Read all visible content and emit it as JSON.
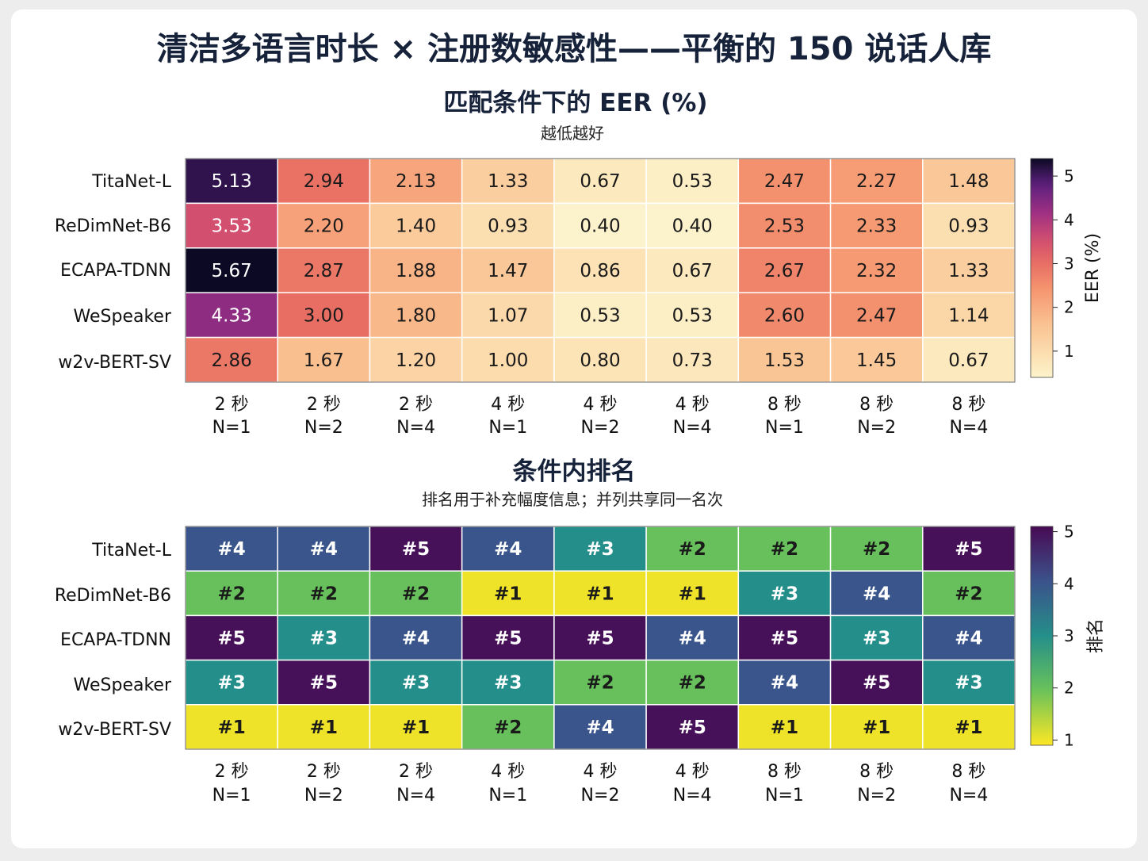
{
  "figure": {
    "title": "清洁多语言时长 × 注册数敏感性——平衡的 150 说话人库"
  },
  "chart_data": [
    {
      "type": "heatmap",
      "title": "匹配条件下的 EER (%)",
      "subtitle": "越低越好",
      "rows": [
        "TitaNet-L",
        "ReDimNet-B6",
        "ECAPA-TDNN",
        "WeSpeaker",
        "w2v-BERT-SV"
      ],
      "columns": [
        {
          "duration": "2 秒",
          "n": "N=1"
        },
        {
          "duration": "2 秒",
          "n": "N=2"
        },
        {
          "duration": "2 秒",
          "n": "N=4"
        },
        {
          "duration": "4 秒",
          "n": "N=1"
        },
        {
          "duration": "4 秒",
          "n": "N=2"
        },
        {
          "duration": "4 秒",
          "n": "N=4"
        },
        {
          "duration": "8 秒",
          "n": "N=1"
        },
        {
          "duration": "8 秒",
          "n": "N=2"
        },
        {
          "duration": "8 秒",
          "n": "N=4"
        }
      ],
      "values": [
        [
          5.13,
          2.94,
          2.13,
          1.33,
          0.67,
          0.53,
          2.47,
          2.27,
          1.48
        ],
        [
          3.53,
          2.2,
          1.4,
          0.93,
          0.4,
          0.4,
          2.53,
          2.33,
          0.93
        ],
        [
          5.67,
          2.87,
          1.88,
          1.47,
          0.86,
          0.67,
          2.67,
          2.32,
          1.33
        ],
        [
          4.33,
          3.0,
          1.8,
          1.07,
          0.53,
          0.53,
          2.6,
          2.47,
          1.14
        ],
        [
          2.86,
          1.67,
          1.2,
          1.0,
          0.8,
          0.73,
          1.53,
          1.45,
          0.67
        ]
      ],
      "value_format": "fixed2",
      "colorscale": "magma-reversed",
      "colorbar": {
        "label": "EER (%)",
        "range": [
          0.4,
          5.4
        ],
        "ticks": [
          1,
          2,
          3,
          4,
          5
        ]
      }
    },
    {
      "type": "heatmap",
      "title": "条件内排名",
      "subtitle": "排名用于补充幅度信息；并列共享同一名次",
      "rows": [
        "TitaNet-L",
        "ReDimNet-B6",
        "ECAPA-TDNN",
        "WeSpeaker",
        "w2v-BERT-SV"
      ],
      "columns": [
        {
          "duration": "2 秒",
          "n": "N=1"
        },
        {
          "duration": "2 秒",
          "n": "N=2"
        },
        {
          "duration": "2 秒",
          "n": "N=4"
        },
        {
          "duration": "4 秒",
          "n": "N=1"
        },
        {
          "duration": "4 秒",
          "n": "N=2"
        },
        {
          "duration": "4 秒",
          "n": "N=4"
        },
        {
          "duration": "8 秒",
          "n": "N=1"
        },
        {
          "duration": "8 秒",
          "n": "N=2"
        },
        {
          "duration": "8 秒",
          "n": "N=4"
        }
      ],
      "values": [
        [
          4,
          4,
          5,
          4,
          3,
          2,
          2,
          2,
          5
        ],
        [
          2,
          2,
          2,
          1,
          1,
          1,
          3,
          4,
          2
        ],
        [
          5,
          3,
          4,
          5,
          5,
          4,
          5,
          3,
          4
        ],
        [
          3,
          5,
          3,
          3,
          2,
          2,
          4,
          5,
          3
        ],
        [
          1,
          1,
          1,
          2,
          4,
          5,
          1,
          1,
          1
        ]
      ],
      "value_format": "rank",
      "colorscale": "viridis-reversed",
      "colorbar": {
        "label": "排名",
        "range": [
          0.9,
          5.1
        ],
        "ticks": [
          1,
          2,
          3,
          4,
          5
        ]
      }
    }
  ]
}
